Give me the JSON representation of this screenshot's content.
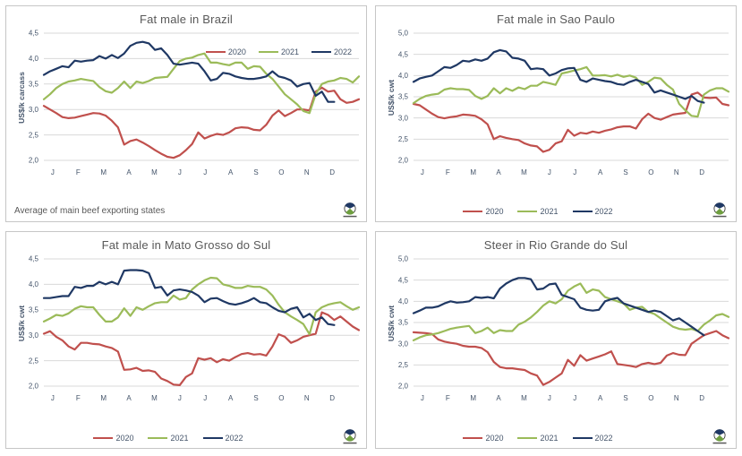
{
  "colors": {
    "red": "#C0504D",
    "green": "#9BBB59",
    "navy": "#1F3864",
    "grid": "#D9D9D9",
    "axis_text": "#44546A",
    "title_text": "#595959",
    "panel_border": "#C6C6C6",
    "background": "#FFFFFF"
  },
  "legend": {
    "items": [
      {
        "label": "2020",
        "color": "#C0504D"
      },
      {
        "label": "2021",
        "color": "#9BBB59"
      },
      {
        "label": "2022",
        "color": "#1F3864"
      }
    ]
  },
  "chart_data": [
    {
      "type": "line",
      "title": "Fat male in Brazil",
      "ylabel": "US$/k carcass",
      "xlabel": "",
      "ylim": [
        2.0,
        4.5
      ],
      "ytick_values": [
        4.5,
        4.0,
        3.5,
        3.0,
        2.5,
        2.0
      ],
      "ytick_labels": [
        "4,5",
        "4,0",
        "3,5",
        "3,0",
        "2,5",
        "2,0"
      ],
      "months": [
        "J",
        "F",
        "M",
        "A",
        "M",
        "J",
        "J",
        "A",
        "S",
        "O",
        "N",
        "D"
      ],
      "grid": true,
      "legend_position": "top-right-inside",
      "footnote": "Average of main beef exporting states",
      "series": [
        {
          "name": "2020",
          "color": "#C0504D",
          "values": [
            3.07,
            3.0,
            2.93,
            2.85,
            2.83,
            2.84,
            2.87,
            2.9,
            2.93,
            2.92,
            2.88,
            2.78,
            2.65,
            2.31,
            2.38,
            2.41,
            2.35,
            2.28,
            2.2,
            2.13,
            2.07,
            2.05,
            2.1,
            2.2,
            2.32,
            2.55,
            2.43,
            2.48,
            2.52,
            2.5,
            2.55,
            2.63,
            2.65,
            2.64,
            2.6,
            2.59,
            2.7,
            2.88,
            2.98,
            2.87,
            2.93,
            3.0,
            3.0,
            2.98,
            3.35,
            3.43,
            3.35,
            3.37,
            3.2,
            3.13,
            3.15,
            3.2
          ]
        },
        {
          "name": "2021",
          "color": "#9BBB59",
          "values": [
            3.2,
            3.3,
            3.42,
            3.5,
            3.55,
            3.57,
            3.6,
            3.58,
            3.56,
            3.44,
            3.36,
            3.33,
            3.42,
            3.55,
            3.42,
            3.55,
            3.52,
            3.56,
            3.62,
            3.63,
            3.64,
            3.8,
            3.95,
            4.0,
            4.02,
            4.07,
            4.1,
            3.92,
            3.92,
            3.89,
            3.87,
            3.92,
            3.92,
            3.8,
            3.85,
            3.84,
            3.7,
            3.6,
            3.45,
            3.3,
            3.2,
            3.1,
            2.97,
            2.93,
            3.3,
            3.5,
            3.55,
            3.57,
            3.62,
            3.6,
            3.53,
            3.65
          ]
        },
        {
          "name": "2022",
          "color": "#1F3864",
          "values": [
            3.68,
            3.75,
            3.8,
            3.85,
            3.83,
            3.96,
            3.94,
            3.96,
            3.97,
            4.05,
            4.0,
            4.07,
            4.01,
            4.1,
            4.25,
            4.31,
            4.33,
            4.3,
            4.17,
            4.2,
            4.07,
            3.9,
            3.88,
            3.9,
            3.92,
            3.9,
            3.75,
            3.57,
            3.6,
            3.72,
            3.7,
            3.65,
            3.62,
            3.6,
            3.6,
            3.62,
            3.65,
            3.75,
            3.65,
            3.62,
            3.57,
            3.45,
            3.5,
            3.52,
            3.27,
            3.35,
            3.15,
            3.15
          ]
        }
      ]
    },
    {
      "type": "line",
      "title": "Fat male in Sao Paulo",
      "ylabel": "US$/k cwt",
      "xlabel": "",
      "ylim": [
        2.0,
        5.0
      ],
      "ytick_values": [
        5.0,
        4.5,
        4.0,
        3.5,
        3.0,
        2.5,
        2.0
      ],
      "ytick_labels": [
        "5,0",
        "4,5",
        "4,0",
        "3,5",
        "3,0",
        "2,5",
        "2,0"
      ],
      "months": [
        "J",
        "F",
        "M",
        "A",
        "M",
        "J",
        "J",
        "A",
        "S",
        "O",
        "N",
        "D"
      ],
      "grid": true,
      "legend_position": "bottom",
      "series": [
        {
          "name": "2020",
          "color": "#C0504D",
          "values": [
            3.33,
            3.3,
            3.2,
            3.1,
            3.02,
            2.99,
            3.02,
            3.04,
            3.08,
            3.07,
            3.05,
            2.97,
            2.85,
            2.5,
            2.57,
            2.53,
            2.5,
            2.48,
            2.4,
            2.35,
            2.33,
            2.2,
            2.25,
            2.4,
            2.45,
            2.72,
            2.58,
            2.65,
            2.63,
            2.68,
            2.65,
            2.7,
            2.73,
            2.78,
            2.8,
            2.8,
            2.75,
            2.97,
            3.1,
            3.0,
            2.96,
            3.02,
            3.08,
            3.1,
            3.12,
            3.55,
            3.6,
            3.48,
            3.47,
            3.48,
            3.33,
            3.3
          ]
        },
        {
          "name": "2021",
          "color": "#9BBB59",
          "values": [
            3.35,
            3.45,
            3.52,
            3.55,
            3.57,
            3.67,
            3.7,
            3.68,
            3.68,
            3.66,
            3.52,
            3.45,
            3.52,
            3.7,
            3.58,
            3.7,
            3.64,
            3.72,
            3.68,
            3.76,
            3.76,
            3.85,
            3.82,
            3.78,
            4.05,
            4.08,
            4.12,
            4.15,
            4.2,
            4.0,
            4.0,
            4.01,
            3.98,
            4.02,
            3.97,
            4.0,
            3.95,
            3.78,
            3.85,
            3.95,
            3.93,
            3.78,
            3.67,
            3.33,
            3.18,
            3.05,
            3.03,
            3.55,
            3.65,
            3.7,
            3.7,
            3.62
          ]
        },
        {
          "name": "2022",
          "color": "#1F3864",
          "values": [
            3.85,
            3.93,
            3.97,
            4.0,
            4.1,
            4.2,
            4.18,
            4.25,
            4.35,
            4.33,
            4.38,
            4.35,
            4.4,
            4.55,
            4.6,
            4.57,
            4.42,
            4.4,
            4.35,
            4.15,
            4.17,
            4.15,
            4.0,
            4.05,
            4.13,
            4.17,
            4.18,
            3.9,
            3.85,
            3.93,
            3.9,
            3.87,
            3.85,
            3.8,
            3.78,
            3.85,
            3.9,
            3.85,
            3.8,
            3.6,
            3.65,
            3.6,
            3.55,
            3.5,
            3.45,
            3.52,
            3.4,
            3.36
          ]
        }
      ]
    },
    {
      "type": "line",
      "title": "Fat male in Mato Grosso do Sul",
      "ylabel": "US$/k cwt",
      "xlabel": "",
      "ylim": [
        2.0,
        4.5
      ],
      "ytick_values": [
        4.5,
        4.0,
        3.5,
        3.0,
        2.5,
        2.0
      ],
      "ytick_labels": [
        "4,5",
        "4,0",
        "3,5",
        "3,0",
        "2,5",
        "2,0"
      ],
      "months": [
        "J",
        "F",
        "M",
        "A",
        "M",
        "J",
        "J",
        "A",
        "S",
        "O",
        "N",
        "D"
      ],
      "grid": true,
      "legend_position": "bottom",
      "series": [
        {
          "name": "2020",
          "color": "#C0504D",
          "values": [
            3.03,
            3.08,
            2.97,
            2.9,
            2.78,
            2.72,
            2.85,
            2.85,
            2.83,
            2.82,
            2.78,
            2.75,
            2.68,
            2.32,
            2.33,
            2.36,
            2.3,
            2.31,
            2.28,
            2.15,
            2.1,
            2.03,
            2.02,
            2.18,
            2.25,
            2.55,
            2.52,
            2.55,
            2.47,
            2.53,
            2.5,
            2.57,
            2.63,
            2.65,
            2.62,
            2.63,
            2.6,
            2.78,
            3.02,
            2.97,
            2.85,
            2.9,
            2.97,
            3.0,
            3.03,
            3.45,
            3.4,
            3.3,
            3.37,
            3.27,
            3.17,
            3.1
          ]
        },
        {
          "name": "2021",
          "color": "#9BBB59",
          "values": [
            3.27,
            3.33,
            3.4,
            3.38,
            3.43,
            3.52,
            3.57,
            3.55,
            3.55,
            3.4,
            3.27,
            3.27,
            3.35,
            3.53,
            3.38,
            3.55,
            3.5,
            3.57,
            3.63,
            3.65,
            3.65,
            3.78,
            3.7,
            3.73,
            3.9,
            4.0,
            4.08,
            4.13,
            4.12,
            4.0,
            3.97,
            3.93,
            3.93,
            3.97,
            3.95,
            3.95,
            3.9,
            3.78,
            3.6,
            3.45,
            3.37,
            3.3,
            3.22,
            3.02,
            3.45,
            3.55,
            3.6,
            3.63,
            3.65,
            3.57,
            3.5,
            3.55
          ]
        },
        {
          "name": "2022",
          "color": "#1F3864",
          "values": [
            3.73,
            3.73,
            3.75,
            3.77,
            3.77,
            3.95,
            3.93,
            3.97,
            3.97,
            4.05,
            4.0,
            4.05,
            4.0,
            4.27,
            4.28,
            4.28,
            4.27,
            4.22,
            3.93,
            3.95,
            3.78,
            3.88,
            3.9,
            3.88,
            3.85,
            3.78,
            3.65,
            3.72,
            3.73,
            3.67,
            3.62,
            3.6,
            3.63,
            3.67,
            3.73,
            3.65,
            3.63,
            3.55,
            3.48,
            3.45,
            3.52,
            3.55,
            3.35,
            3.42,
            3.3,
            3.35,
            3.22,
            3.2
          ]
        }
      ]
    },
    {
      "type": "line",
      "title": "Steer in Rio Grande do Sul",
      "ylabel": "US$/k cwt",
      "xlabel": "",
      "ylim": [
        2.0,
        5.0
      ],
      "ytick_values": [
        5.0,
        4.5,
        4.0,
        3.5,
        3.0,
        2.5,
        2.0
      ],
      "ytick_labels": [
        "5,0",
        "4,5",
        "4,0",
        "3,5",
        "3,0",
        "2,5",
        "2,0"
      ],
      "months": [
        "J",
        "F",
        "M",
        "A",
        "M",
        "J",
        "J",
        "A",
        "S",
        "O",
        "N",
        "D"
      ],
      "grid": true,
      "legend_position": "bottom",
      "series": [
        {
          "name": "2020",
          "color": "#C0504D",
          "values": [
            3.27,
            3.26,
            3.25,
            3.23,
            3.1,
            3.05,
            3.02,
            3.0,
            2.95,
            2.93,
            2.93,
            2.9,
            2.8,
            2.57,
            2.45,
            2.42,
            2.42,
            2.4,
            2.38,
            2.3,
            2.25,
            2.03,
            2.1,
            2.2,
            2.3,
            2.62,
            2.48,
            2.73,
            2.6,
            2.65,
            2.7,
            2.75,
            2.82,
            2.52,
            2.5,
            2.48,
            2.45,
            2.52,
            2.55,
            2.52,
            2.55,
            2.72,
            2.78,
            2.74,
            2.73,
            3.0,
            3.1,
            3.2,
            3.25,
            3.3,
            3.2,
            3.13
          ]
        },
        {
          "name": "2021",
          "color": "#9BBB59",
          "values": [
            3.08,
            3.15,
            3.2,
            3.22,
            3.25,
            3.3,
            3.35,
            3.38,
            3.4,
            3.42,
            3.25,
            3.3,
            3.38,
            3.25,
            3.32,
            3.3,
            3.3,
            3.45,
            3.52,
            3.62,
            3.75,
            3.9,
            4.0,
            3.95,
            4.05,
            4.25,
            4.35,
            4.42,
            4.2,
            4.28,
            4.25,
            4.1,
            4.05,
            4.0,
            3.95,
            3.8,
            3.85,
            3.87,
            3.75,
            3.7,
            3.6,
            3.5,
            3.4,
            3.35,
            3.33,
            3.35,
            3.3,
            3.45,
            3.55,
            3.67,
            3.7,
            3.63
          ]
        },
        {
          "name": "2022",
          "color": "#1F3864",
          "values": [
            3.72,
            3.78,
            3.85,
            3.85,
            3.88,
            3.95,
            4.0,
            3.97,
            3.98,
            4.0,
            4.1,
            4.08,
            4.1,
            4.07,
            4.3,
            4.42,
            4.5,
            4.55,
            4.55,
            4.52,
            4.28,
            4.3,
            4.4,
            4.42,
            4.15,
            4.1,
            4.05,
            3.85,
            3.8,
            3.78,
            3.8,
            4.0,
            4.05,
            4.08,
            3.95,
            3.9,
            3.85,
            3.8,
            3.75,
            3.78,
            3.75,
            3.65,
            3.55,
            3.6,
            3.5,
            3.4,
            3.3,
            3.2
          ]
        }
      ]
    }
  ]
}
